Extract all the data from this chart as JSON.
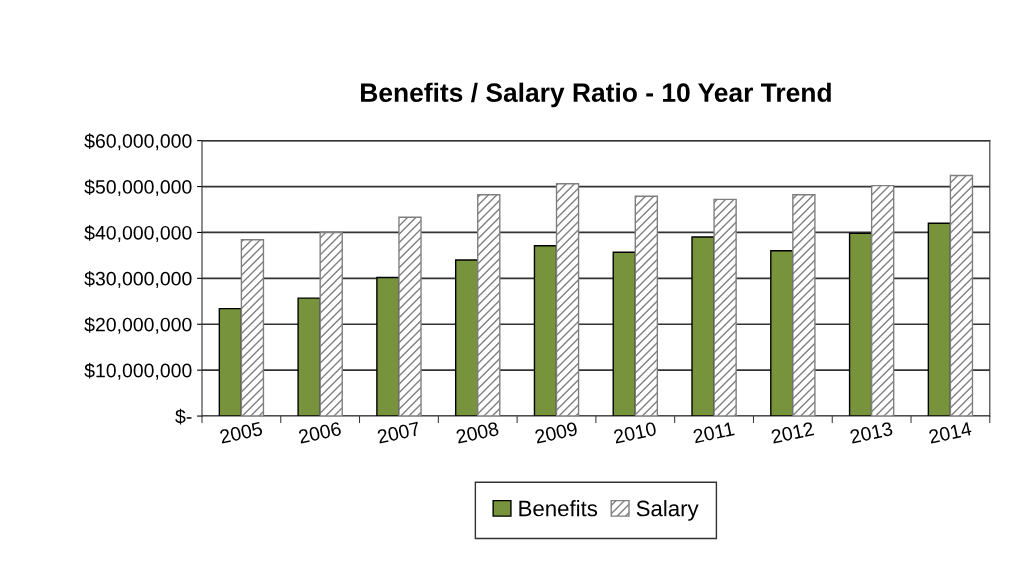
{
  "chart_data": {
    "type": "bar",
    "title": "Benefits / Salary Ratio - 10 Year Trend",
    "categories": [
      "2005",
      "2006",
      "2007",
      "2008",
      "2009",
      "2010",
      "2011",
      "2012",
      "2013",
      "2014"
    ],
    "series": [
      {
        "name": "Benefits",
        "color": "#77933c",
        "values": [
          23400000,
          25700000,
          30200000,
          34000000,
          37100000,
          35700000,
          39000000,
          36000000,
          39800000,
          42000000
        ]
      },
      {
        "name": "Salary",
        "color": "#7f7f7f",
        "values": [
          38400000,
          40000000,
          43300000,
          48200000,
          50600000,
          47900000,
          47200000,
          48200000,
          50200000,
          52400000
        ]
      }
    ],
    "ylim": [
      0,
      60000000
    ],
    "yticks": [
      {
        "value": 0,
        "label": "$-"
      },
      {
        "value": 10000000,
        "label": "$10,000,000"
      },
      {
        "value": 20000000,
        "label": "$20,000,000"
      },
      {
        "value": 30000000,
        "label": "$30,000,000"
      },
      {
        "value": 40000000,
        "label": "$40,000,000"
      },
      {
        "value": 50000000,
        "label": "$50,000,000"
      },
      {
        "value": 60000000,
        "label": "$60,000,000"
      }
    ],
    "grid": "y",
    "legend": "bottom"
  }
}
